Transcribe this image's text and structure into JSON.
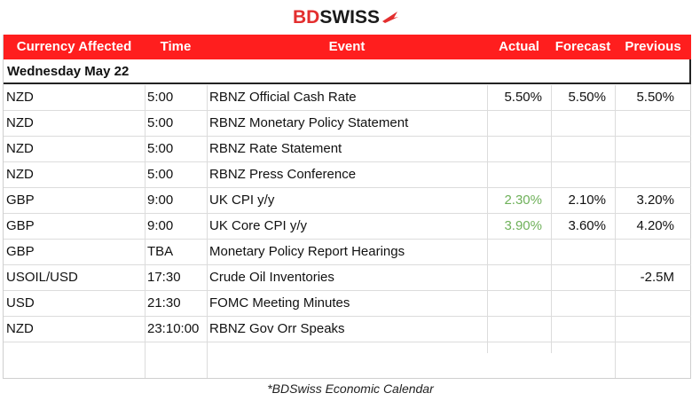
{
  "brand": {
    "part1": "BD",
    "part2": "SWISS"
  },
  "header": {
    "currency": "Currency Affected",
    "time": "Time",
    "event": "Event",
    "actual": "Actual",
    "forecast": "Forecast",
    "previous": "Previous"
  },
  "day_label": "Wednesday May 22",
  "rows": [
    {
      "currency": "NZD",
      "time": "5:00",
      "event": "RBNZ Official Cash Rate",
      "actual": "5.50%",
      "forecast": "5.50%",
      "previous": "5.50%"
    },
    {
      "currency": "NZD",
      "time": "5:00",
      "event": "RBNZ Monetary Policy Statement",
      "actual": "",
      "forecast": "",
      "previous": ""
    },
    {
      "currency": "NZD",
      "time": "5:00",
      "event": "RBNZ Rate Statement",
      "actual": "",
      "forecast": "",
      "previous": ""
    },
    {
      "currency": "NZD",
      "time": "5:00",
      "event": "RBNZ Press Conference",
      "actual": "",
      "forecast": "",
      "previous": ""
    },
    {
      "currency": "GBP",
      "time": "9:00",
      "event": "UK CPI y/y",
      "actual": "2.30%",
      "forecast": "2.10%",
      "previous": "3.20%"
    },
    {
      "currency": "GBP",
      "time": "9:00",
      "event": "UK Core CPI y/y",
      "actual": "3.90%",
      "forecast": "3.60%",
      "previous": "4.20%"
    },
    {
      "currency": "GBP",
      "time": "TBA",
      "event": "Monetary Policy Report Hearings",
      "actual": "",
      "forecast": "",
      "previous": ""
    },
    {
      "currency": "USOIL/USD",
      "time": "17:30",
      "event": "Crude Oil Inventories",
      "actual": "",
      "forecast": "",
      "previous": "-2.5M"
    },
    {
      "currency": "USD",
      "time": "21:30",
      "event": "FOMC Meeting Minutes",
      "actual": "",
      "forecast": "",
      "previous": ""
    },
    {
      "currency": "NZD",
      "time": "23:10:00",
      "event": "RBNZ Gov Orr Speaks",
      "actual": "",
      "forecast": "",
      "previous": ""
    }
  ],
  "footer": "*BDSwiss Economic Calendar",
  "colors": {
    "header_bg": "#ff1e1e",
    "positive": "#6fb15a",
    "brand_red": "#e32e2e"
  }
}
